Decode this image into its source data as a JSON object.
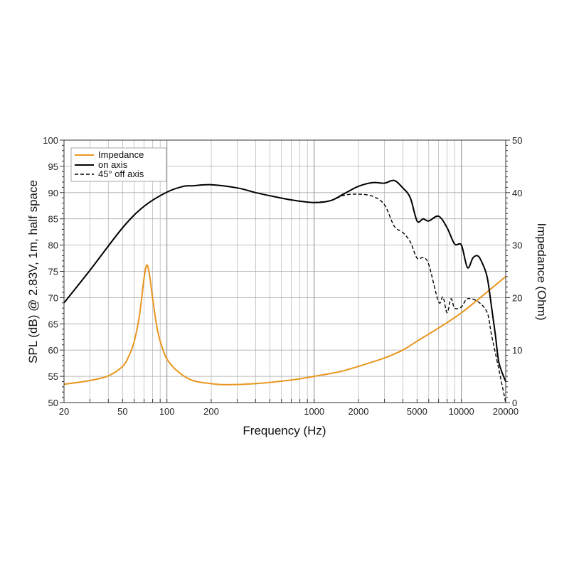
{
  "chart_data": {
    "type": "line",
    "title": "",
    "xlabel": "Frequency (Hz)",
    "ylabel": "SPL (dB) @ 2.83V, 1m, half space",
    "y2label": "Impedance (Ohm)",
    "xscale": "log",
    "xlim": [
      20,
      20000
    ],
    "ylim": [
      50,
      100
    ],
    "y2lim": [
      0,
      50
    ],
    "grid": true,
    "legend_position": "top-left",
    "x_ticks": [
      20,
      50,
      100,
      200,
      1000,
      2000,
      5000,
      10000,
      20000
    ],
    "x_tick_labels": [
      "20",
      "50",
      "100",
      "200",
      "1000",
      "2000",
      "5000",
      "10000",
      "20000"
    ],
    "y_ticks": [
      50,
      55,
      60,
      65,
      70,
      75,
      80,
      85,
      90,
      95,
      100
    ],
    "y_tick_labels": [
      "50",
      "55",
      "60",
      "65",
      "70",
      "75",
      "80",
      "85",
      "90",
      "95",
      "100"
    ],
    "y2_ticks": [
      0,
      10,
      20,
      30,
      40,
      50
    ],
    "y2_tick_labels": [
      "0",
      "10",
      "20",
      "30",
      "40",
      "50"
    ],
    "series": [
      {
        "name": "Impedance",
        "axis": "right",
        "color": "#e8961e",
        "style": "solid",
        "x": [
          20,
          30,
          40,
          50,
          55,
          60,
          65,
          70,
          73,
          76,
          80,
          85,
          90,
          100,
          120,
          150,
          200,
          250,
          400,
          700,
          1000,
          1500,
          2000,
          3000,
          4000,
          5000,
          7000,
          10000,
          15000,
          20000
        ],
        "y": [
          3.5,
          4.2,
          5.1,
          6.9,
          8.8,
          11.7,
          16.5,
          23.8,
          26.2,
          24.5,
          19.8,
          14.8,
          11.7,
          8.3,
          5.8,
          4.2,
          3.6,
          3.4,
          3.6,
          4.3,
          5.0,
          5.9,
          6.9,
          8.5,
          10.0,
          11.7,
          14.2,
          17.1,
          21.1,
          24.0
        ]
      },
      {
        "name": "on axis",
        "axis": "left",
        "color": "#000000",
        "style": "solid",
        "x": [
          20,
          30,
          50,
          70,
          100,
          130,
          150,
          200,
          300,
          400,
          500,
          700,
          1000,
          1300,
          1600,
          2000,
          2500,
          3000,
          3500,
          4000,
          4500,
          5000,
          5500,
          6000,
          7000,
          8000,
          9000,
          10000,
          11000,
          12000,
          13000,
          14000,
          15000,
          16000,
          17000,
          18000,
          20000
        ],
        "y": [
          69.0,
          75.2,
          83.3,
          87.4,
          90.1,
          91.2,
          91.3,
          91.5,
          90.9,
          90.0,
          89.4,
          88.6,
          88.1,
          88.5,
          89.8,
          91.2,
          91.9,
          91.8,
          92.3,
          90.9,
          89.0,
          84.6,
          85.0,
          84.6,
          85.5,
          83.3,
          80.2,
          80.0,
          75.7,
          77.6,
          77.9,
          76.3,
          73.8,
          68.4,
          63.0,
          57.6,
          54.0
        ]
      },
      {
        "name": "45° off axis",
        "axis": "left",
        "color": "#000000",
        "style": "dashed",
        "x": [
          1000,
          1300,
          1600,
          2000,
          2500,
          3000,
          3500,
          4000,
          4500,
          5000,
          5500,
          6000,
          7000,
          7500,
          8000,
          8500,
          9000,
          10000,
          11000,
          13000,
          15000,
          16000,
          18000,
          20000
        ],
        "y": [
          88.1,
          88.5,
          89.5,
          89.7,
          89.3,
          87.7,
          83.6,
          82.4,
          80.6,
          77.5,
          77.6,
          76.3,
          69.2,
          70.1,
          67.1,
          69.8,
          68.0,
          68.2,
          69.8,
          69.2,
          67.1,
          63.0,
          56.2,
          50.0
        ]
      }
    ]
  }
}
